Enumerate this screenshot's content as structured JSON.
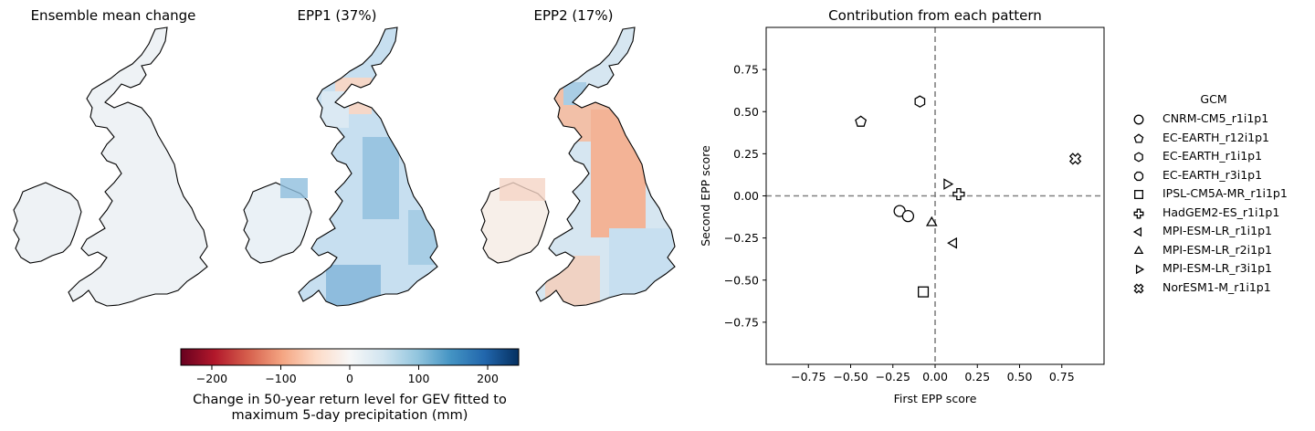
{
  "map_panels": [
    {
      "title": "Ensemble mean change",
      "fill": "ensemble"
    },
    {
      "title": "EPP1 (37%)",
      "fill": "epp1"
    },
    {
      "title": "EPP2 (17%)",
      "fill": "epp2"
    }
  ],
  "colorbar": {
    "label_line1": "Change in 50-year return level for GEV fitted to",
    "label_line2": "maximum 5-day precipitation (mm)",
    "ticks": [
      "−200",
      "−100",
      "0",
      "100",
      "200"
    ],
    "tick_values": [
      -200,
      -100,
      0,
      100,
      200
    ],
    "range": [
      -245,
      245
    ],
    "colormap": "RdBu"
  },
  "chart_data": {
    "type": "scatter",
    "title": "Contribution from each pattern",
    "xlabel": "First EPP score",
    "ylabel": "Second EPP score",
    "xlim": [
      -1.0,
      1.0
    ],
    "ylim": [
      -1.0,
      1.0
    ],
    "xticks": [
      "−0.75",
      "−0.50",
      "−0.25",
      "0.00",
      "0.25",
      "0.50",
      "0.75"
    ],
    "xtick_values": [
      -0.75,
      -0.5,
      -0.25,
      0.0,
      0.25,
      0.5,
      0.75
    ],
    "yticks": [
      "0.75",
      "0.50",
      "0.25",
      "0.00",
      "−0.25",
      "−0.50",
      "−0.75"
    ],
    "ytick_values": [
      0.75,
      0.5,
      0.25,
      0.0,
      -0.25,
      -0.5,
      -0.75
    ],
    "reference_lines": {
      "x": 0.0,
      "y": 0.0,
      "style": "dashed",
      "color": "#808080"
    },
    "legend_title": "GCM",
    "legend_position": "right, outside",
    "series": [
      {
        "name": "CNRM-CM5_r1i1p1",
        "marker": "circle",
        "points": [
          [
            -0.21,
            -0.09
          ],
          [
            -0.16,
            -0.12
          ]
        ]
      },
      {
        "name": "EC-EARTH_r12i1p1",
        "marker": "pentagon",
        "points": [
          [
            -0.44,
            0.44
          ]
        ]
      },
      {
        "name": "EC-EARTH_r1i1p1",
        "marker": "hexagon",
        "points": [
          [
            -0.09,
            0.56
          ]
        ]
      },
      {
        "name": "EC-EARTH_r3i1p1",
        "marker": "octagon",
        "points": []
      },
      {
        "name": "IPSL-CM5A-MR_r1i1p1",
        "marker": "square",
        "points": [
          [
            -0.07,
            -0.57
          ]
        ]
      },
      {
        "name": "HadGEM2-ES_r1i1p1",
        "marker": "plus",
        "points": [
          [
            0.14,
            0.01
          ]
        ]
      },
      {
        "name": "MPI-ESM-LR_r1i1p1",
        "marker": "triangle-left",
        "points": [
          [
            0.11,
            -0.28
          ]
        ]
      },
      {
        "name": "MPI-ESM-LR_r2i1p1",
        "marker": "triangle-up",
        "points": [
          [
            -0.02,
            -0.16
          ]
        ]
      },
      {
        "name": "MPI-ESM-LR_r3i1p1",
        "marker": "triangle-right",
        "points": [
          [
            0.07,
            0.07
          ]
        ]
      },
      {
        "name": "NorESM1-M_r1i1p1",
        "marker": "x-filled",
        "points": [
          [
            0.83,
            0.22
          ]
        ]
      }
    ]
  }
}
